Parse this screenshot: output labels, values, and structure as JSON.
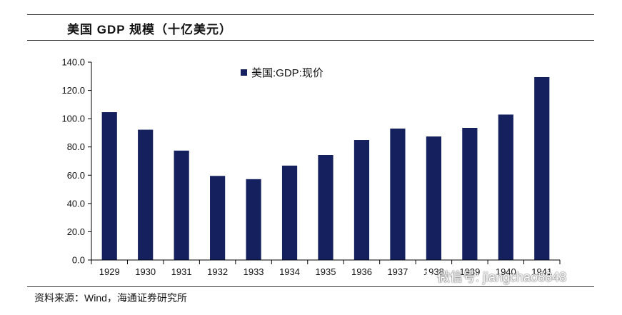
{
  "header": {
    "title": "美国 GDP 规模（十亿美元）"
  },
  "footer": {
    "source": "资料来源：Wind，海通证券研究所"
  },
  "watermark": {
    "icon": "wechat-icon",
    "text": "微信号: jiangchao8848"
  },
  "colors": {
    "bar": "#15215E",
    "axis": "#000000",
    "text": "#111111"
  },
  "chart_data": {
    "type": "bar",
    "title": "美国 GDP 规模（十亿美元）",
    "xlabel": "",
    "ylabel": "",
    "categories": [
      "1929",
      "1930",
      "1931",
      "1932",
      "1933",
      "1934",
      "1935",
      "1936",
      "1937",
      "1938",
      "1939",
      "1940",
      "1941"
    ],
    "series": [
      {
        "name": "美国:GDP:现价",
        "values": [
          104.6,
          92.2,
          77.4,
          59.5,
          57.2,
          66.8,
          74.3,
          84.9,
          93.0,
          87.4,
          93.5,
          102.9,
          129.4
        ]
      }
    ],
    "ylim": [
      0,
      140
    ],
    "yticks": [
      "0.0",
      "20.0",
      "40.0",
      "60.0",
      "80.0",
      "100.0",
      "120.0",
      "140.0"
    ],
    "grid": false,
    "legend_position": "top-center"
  }
}
